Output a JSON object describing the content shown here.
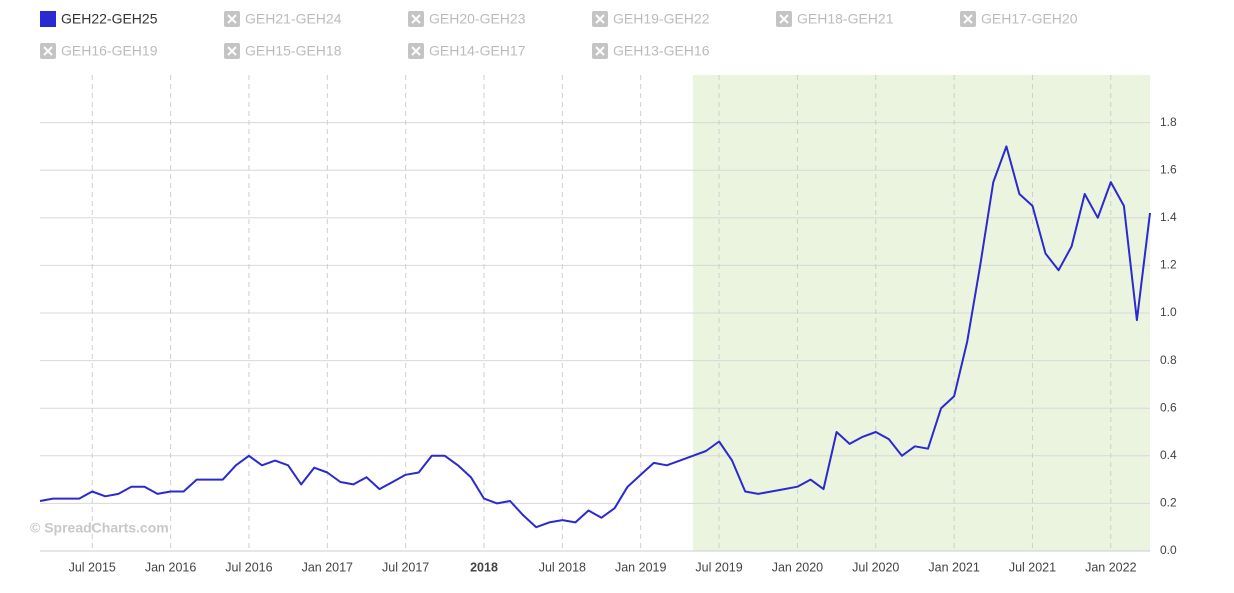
{
  "chart_data": {
    "type": "line",
    "series": [
      {
        "name": "GEH22-GEH25",
        "color": "#2a2ad0",
        "values": [
          0.21,
          0.22,
          0.22,
          0.22,
          0.25,
          0.23,
          0.24,
          0.27,
          0.27,
          0.24,
          0.25,
          0.25,
          0.3,
          0.3,
          0.3,
          0.36,
          0.4,
          0.36,
          0.38,
          0.36,
          0.28,
          0.35,
          0.33,
          0.29,
          0.28,
          0.31,
          0.26,
          0.29,
          0.32,
          0.33,
          0.4,
          0.4,
          0.36,
          0.31,
          0.22,
          0.2,
          0.21,
          0.15,
          0.1,
          0.12,
          0.13,
          0.12,
          0.17,
          0.14,
          0.18,
          0.27,
          0.32,
          0.37,
          0.36,
          0.38,
          0.4,
          0.42,
          0.46,
          0.38,
          0.25,
          0.24,
          0.25,
          0.26,
          0.27,
          0.3,
          0.26,
          0.5,
          0.45,
          0.48,
          0.5,
          0.47,
          0.4,
          0.44,
          0.43,
          0.6,
          0.65,
          0.88,
          1.2,
          1.55,
          1.7,
          1.5,
          1.45,
          1.25,
          1.18,
          1.28,
          1.5,
          1.4,
          1.55,
          1.45,
          0.97,
          1.42
        ]
      }
    ],
    "hidden_series": [
      "GEH21-GEH24",
      "GEH20-GEH23",
      "GEH19-GEH22",
      "GEH18-GEH21",
      "GEH17-GEH20",
      "GEH16-GEH19",
      "GEH15-GEH18",
      "GEH14-GEH17",
      "GEH13-GEH16"
    ],
    "x": [
      "2015-03",
      "2015-04",
      "2015-05",
      "2015-06",
      "2015-07",
      "2015-08",
      "2015-09",
      "2015-10",
      "2015-11",
      "2015-12",
      "2016-01",
      "2016-02",
      "2016-03",
      "2016-04",
      "2016-05",
      "2016-06",
      "2016-07",
      "2016-08",
      "2016-09",
      "2016-10",
      "2016-11",
      "2016-12",
      "2017-01",
      "2017-02",
      "2017-03",
      "2017-04",
      "2017-05",
      "2017-06",
      "2017-07",
      "2017-08",
      "2017-09",
      "2017-10",
      "2017-11",
      "2017-12",
      "2018-01",
      "2018-02",
      "2018-03",
      "2018-04",
      "2018-05",
      "2018-06",
      "2018-07",
      "2018-08",
      "2018-09",
      "2018-10",
      "2018-11",
      "2018-12",
      "2019-01",
      "2019-02",
      "2019-03",
      "2019-04",
      "2019-05",
      "2019-06",
      "2019-07",
      "2019-08",
      "2019-09",
      "2019-10",
      "2019-11",
      "2019-12",
      "2020-01",
      "2020-02",
      "2020-03",
      "2020-04",
      "2020-05",
      "2020-06",
      "2020-07",
      "2020-08",
      "2020-09",
      "2020-10",
      "2020-11",
      "2020-12",
      "2021-01",
      "2021-02",
      "2021-03",
      "2021-04",
      "2021-05",
      "2021-06",
      "2021-07",
      "2021-08",
      "2021-09",
      "2021-10",
      "2021-11",
      "2021-12",
      "2022-01",
      "2022-02",
      "2022-03",
      "2022-04"
    ],
    "xlim": [
      "2015-03",
      "2022-04"
    ],
    "xticks": [
      {
        "value": "2015-07",
        "label": "Jul 2015"
      },
      {
        "value": "2016-01",
        "label": "Jan 2016"
      },
      {
        "value": "2016-07",
        "label": "Jul 2016"
      },
      {
        "value": "2017-01",
        "label": "Jan 2017"
      },
      {
        "value": "2017-07",
        "label": "Jul 2017"
      },
      {
        "value": "2018-01",
        "label": "2018"
      },
      {
        "value": "2018-07",
        "label": "Jul 2018"
      },
      {
        "value": "2019-01",
        "label": "Jan 2019"
      },
      {
        "value": "2019-07",
        "label": "Jul 2019"
      },
      {
        "value": "2020-01",
        "label": "Jan 2020"
      },
      {
        "value": "2020-07",
        "label": "Jul 2020"
      },
      {
        "value": "2021-01",
        "label": "Jan 2021"
      },
      {
        "value": "2021-07",
        "label": "Jul 2021"
      },
      {
        "value": "2022-01",
        "label": "Jan 2022"
      }
    ],
    "ylim": [
      0,
      2
    ],
    "yticks": [
      {
        "value": 0,
        "label": "0.0"
      },
      0.2,
      0.4,
      0.6,
      0.8,
      {
        "value": 1,
        "label": "1.0"
      },
      1.2,
      1.4,
      1.6,
      1.8
    ],
    "highlight": {
      "from": "2019-05",
      "to": "2022-04",
      "color": "#ebf4df"
    },
    "grid": true,
    "watermark": "© SpreadCharts.com"
  }
}
